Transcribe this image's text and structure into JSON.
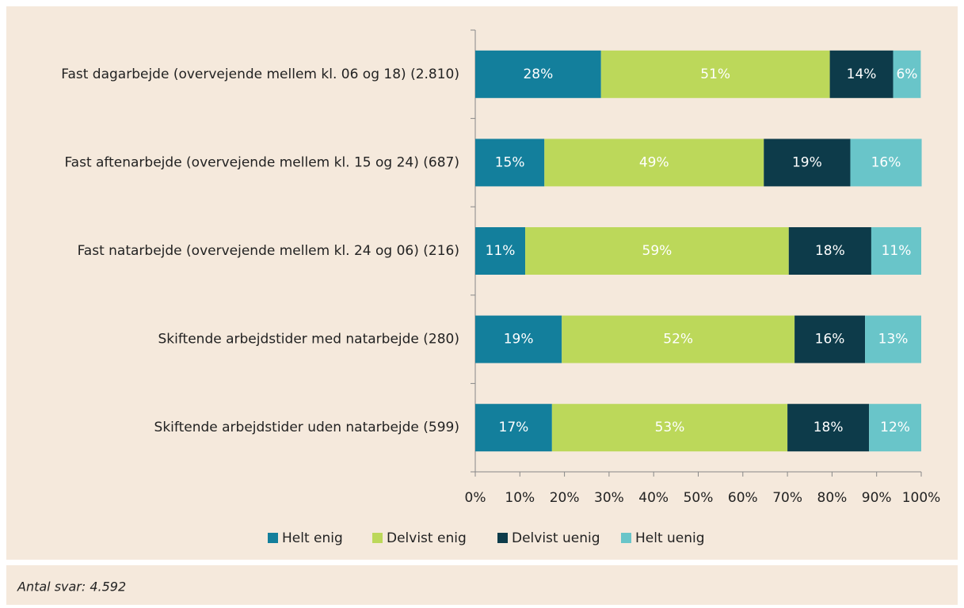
{
  "chart_data": {
    "type": "stacked-bar-horizontal",
    "categories": [
      "Fast dagarbejde (overvejende mellem kl. 06 og 18) (2.810)",
      "Fast aftenarbejde (overvejende mellem kl. 15 og 24) (687)",
      "Fast natarbejde (overvejende mellem kl. 24 og 06) (216)",
      "Skiftende arbejdstider med natarbejde (280)",
      "Skiftende arbejdstider uden natarbejde (599)"
    ],
    "series": [
      {
        "name": "Helt enig",
        "color": "#137f9c",
        "values": [
          28.2,
          15.5,
          11.2,
          19.4,
          17.2
        ],
        "value_labels": [
          "28%",
          "15%",
          "11%",
          "19%",
          "17%"
        ]
      },
      {
        "name": "Delvist enig",
        "color": "#bcd85a",
        "values": [
          51.3,
          49.2,
          59.1,
          52.2,
          52.8
        ],
        "value_labels": [
          "51%",
          "49%",
          "59%",
          "52%",
          "53%"
        ]
      },
      {
        "name": "Delvist uenig",
        "color": "#0d3b4a",
        "values": [
          14.2,
          19.4,
          18.5,
          15.8,
          18.3
        ],
        "value_labels": [
          "14%",
          "19%",
          "18%",
          "16%",
          "18%"
        ]
      },
      {
        "name": "Helt uenig",
        "color": "#69c5c9",
        "values": [
          6.2,
          16.0,
          11.2,
          12.6,
          11.7
        ],
        "value_labels": [
          "6%",
          "16%",
          "11%",
          "13%",
          "12%"
        ]
      }
    ],
    "xlim": [
      0,
      100
    ],
    "xticks": [
      {
        "value": 0,
        "label": "0%"
      },
      {
        "value": 10,
        "label": "10%"
      },
      {
        "value": 20,
        "label": "20%"
      },
      {
        "value": 30,
        "label": "30%"
      },
      {
        "value": 40,
        "label": "40%"
      },
      {
        "value": 50,
        "label": "50%"
      },
      {
        "value": 60,
        "label": "60%"
      },
      {
        "value": 70,
        "label": "70%"
      },
      {
        "value": 80,
        "label": "80%"
      },
      {
        "value": 90,
        "label": "90%"
      },
      {
        "value": 100,
        "label": "100%"
      }
    ],
    "legend": "bottom",
    "note": "Antal svar: 4.592"
  }
}
